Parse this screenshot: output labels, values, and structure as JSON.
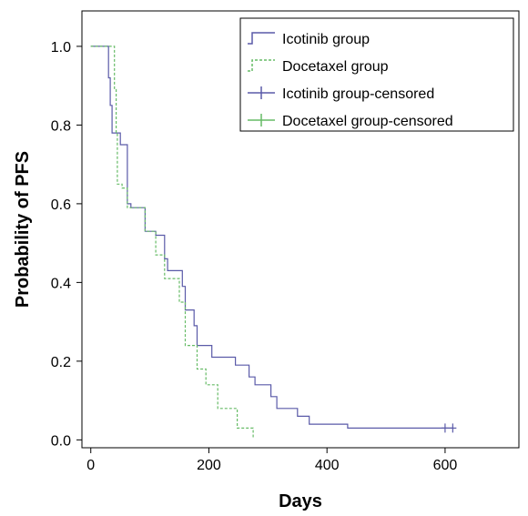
{
  "chart_data": {
    "type": "line",
    "title": "",
    "xlabel": "Days",
    "ylabel": "Probability of PFS",
    "xlim": [
      -15,
      725
    ],
    "ylim": [
      -0.02,
      1.09
    ],
    "x_ticks": [
      0,
      200,
      400,
      600
    ],
    "y_ticks": [
      0.0,
      0.2,
      0.4,
      0.6,
      0.8,
      1.0
    ],
    "x_tick_labels": [
      "0",
      "200",
      "400",
      "600"
    ],
    "y_tick_labels": [
      "0.0",
      "0.2",
      "0.4",
      "0.6",
      "0.8",
      "1.0"
    ],
    "grid": false,
    "legend_position": "top-right",
    "series": [
      {
        "name": "Icotinib group",
        "style": "step-solid",
        "color": "#5a5aa8",
        "points": [
          [
            0,
            1.0
          ],
          [
            30,
            1.0
          ],
          [
            30,
            0.92
          ],
          [
            33,
            0.92
          ],
          [
            33,
            0.85
          ],
          [
            36,
            0.85
          ],
          [
            36,
            0.78
          ],
          [
            50,
            0.78
          ],
          [
            50,
            0.75
          ],
          [
            62,
            0.75
          ],
          [
            62,
            0.6
          ],
          [
            68,
            0.6
          ],
          [
            68,
            0.59
          ],
          [
            92,
            0.59
          ],
          [
            92,
            0.53
          ],
          [
            110,
            0.53
          ],
          [
            110,
            0.52
          ],
          [
            125,
            0.52
          ],
          [
            125,
            0.46
          ],
          [
            130,
            0.46
          ],
          [
            130,
            0.43
          ],
          [
            155,
            0.43
          ],
          [
            155,
            0.39
          ],
          [
            160,
            0.39
          ],
          [
            160,
            0.33
          ],
          [
            175,
            0.33
          ],
          [
            175,
            0.29
          ],
          [
            180,
            0.29
          ],
          [
            180,
            0.24
          ],
          [
            205,
            0.24
          ],
          [
            205,
            0.21
          ],
          [
            245,
            0.21
          ],
          [
            245,
            0.19
          ],
          [
            268,
            0.19
          ],
          [
            268,
            0.16
          ],
          [
            278,
            0.16
          ],
          [
            278,
            0.14
          ],
          [
            305,
            0.14
          ],
          [
            305,
            0.11
          ],
          [
            315,
            0.11
          ],
          [
            315,
            0.08
          ],
          [
            350,
            0.08
          ],
          [
            350,
            0.06
          ],
          [
            370,
            0.06
          ],
          [
            370,
            0.04
          ],
          [
            435,
            0.04
          ],
          [
            435,
            0.03
          ],
          [
            612,
            0.03
          ]
        ]
      },
      {
        "name": "Docetaxel group",
        "style": "step-dashed",
        "color": "#66bb66",
        "points": [
          [
            0,
            1.0
          ],
          [
            40,
            1.0
          ],
          [
            40,
            0.89
          ],
          [
            43,
            0.89
          ],
          [
            43,
            0.78
          ],
          [
            45,
            0.78
          ],
          [
            45,
            0.65
          ],
          [
            53,
            0.65
          ],
          [
            53,
            0.64
          ],
          [
            62,
            0.64
          ],
          [
            62,
            0.59
          ],
          [
            92,
            0.59
          ],
          [
            92,
            0.53
          ],
          [
            110,
            0.53
          ],
          [
            110,
            0.47
          ],
          [
            125,
            0.47
          ],
          [
            125,
            0.41
          ],
          [
            150,
            0.41
          ],
          [
            150,
            0.35
          ],
          [
            160,
            0.35
          ],
          [
            160,
            0.24
          ],
          [
            180,
            0.24
          ],
          [
            180,
            0.18
          ],
          [
            195,
            0.18
          ],
          [
            195,
            0.14
          ],
          [
            215,
            0.14
          ],
          [
            215,
            0.08
          ],
          [
            248,
            0.08
          ],
          [
            248,
            0.03
          ],
          [
            275,
            0.03
          ],
          [
            275,
            0.005
          ]
        ]
      }
    ],
    "censored": [
      {
        "name": "Icotinib group-censored",
        "color": "#5a5aa8",
        "points": [
          [
            600,
            0.03
          ],
          [
            613,
            0.03
          ]
        ]
      },
      {
        "name": "Docetaxel group-censored",
        "color": "#66bb66",
        "points": []
      }
    ]
  },
  "legend": {
    "items": [
      {
        "label": "Icotinib group",
        "symbol": "step-solid",
        "color": "#5a5aa8"
      },
      {
        "label": "Docetaxel group",
        "symbol": "step-dashed",
        "color": "#66bb66"
      },
      {
        "label": "Icotinib group-censored",
        "symbol": "plus",
        "color": "#5a5aa8"
      },
      {
        "label": "Docetaxel group-censored",
        "symbol": "plus",
        "color": "#66bb66"
      }
    ]
  }
}
